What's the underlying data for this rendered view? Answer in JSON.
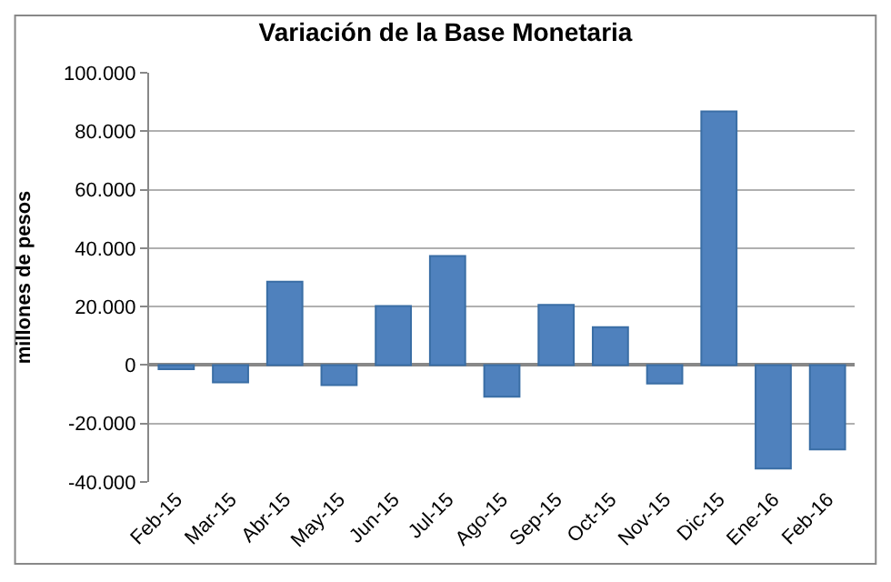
{
  "chart_data": {
    "type": "bar",
    "title": "Variación de la Base Monetaria",
    "ylabel": "millones de pesos",
    "categories": [
      "Feb-15",
      "Mar-15",
      "Abr-15",
      "May-15",
      "Jun-15",
      "Jul-15",
      "Ago-15",
      "Sep-15",
      "Oct-15",
      "Nov-15",
      "Dic-15",
      "Ene-16",
      "Feb-16"
    ],
    "values": [
      -1400,
      -5900,
      28500,
      -6900,
      20200,
      37300,
      -10800,
      20600,
      13000,
      -6300,
      86800,
      -35400,
      -28900
    ],
    "color": "#4f81bd",
    "ylim": [
      -40000,
      100000
    ],
    "yticks": [
      {
        "value": -40000,
        "label": "-40.000"
      },
      {
        "value": -20000,
        "label": "-20.000"
      },
      0,
      {
        "value": 20000,
        "label": "20.000"
      },
      {
        "value": 40000,
        "label": "40.000"
      },
      {
        "value": 60000,
        "label": "60.000"
      },
      {
        "value": 80000,
        "label": "80.000"
      },
      {
        "value": 100000,
        "label": "100.000"
      }
    ],
    "grid": "y"
  }
}
